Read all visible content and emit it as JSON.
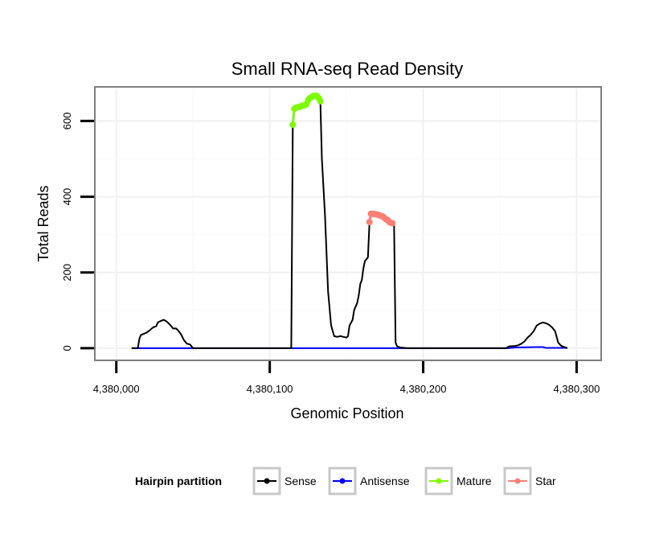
{
  "chart_data": {
    "type": "line",
    "title": "Small RNA-seq Read Density",
    "xlabel": "Genomic Position",
    "ylabel": "Total Reads",
    "xlim": [
      4379986,
      4380316
    ],
    "ylim": [
      -32,
      690
    ],
    "x_ticks": [
      4380000,
      4380100,
      4380200,
      4380300
    ],
    "x_tick_labels": [
      "4,380,000",
      "4,380,100",
      "4,380,200",
      "4,380,300"
    ],
    "y_ticks": [
      0,
      200,
      400,
      600
    ],
    "y_tick_labels": [
      "0",
      "200",
      "400",
      "600"
    ],
    "grid": true,
    "legend": {
      "title": "Hairpin partition",
      "placement": "bottom",
      "entries": [
        {
          "name": "Sense",
          "color": "#000000"
        },
        {
          "name": "Antisense",
          "color": "#0000ff"
        },
        {
          "name": "Mature",
          "color": "#7cfc00"
        },
        {
          "name": "Star",
          "color": "#fa8072"
        }
      ]
    },
    "series": [
      {
        "name": "Sense",
        "color": "#000000",
        "points": [
          [
            4380010,
            0
          ],
          [
            4380014,
            0
          ],
          [
            4380015,
            25
          ],
          [
            4380016,
            35
          ],
          [
            4380018,
            38
          ],
          [
            4380020,
            42
          ],
          [
            4380022,
            48
          ],
          [
            4380024,
            55
          ],
          [
            4380026,
            58
          ],
          [
            4380027,
            68
          ],
          [
            4380029,
            72
          ],
          [
            4380031,
            75
          ],
          [
            4380033,
            70
          ],
          [
            4380035,
            62
          ],
          [
            4380037,
            52
          ],
          [
            4380039,
            52
          ],
          [
            4380040,
            48
          ],
          [
            4380042,
            38
          ],
          [
            4380044,
            22
          ],
          [
            4380046,
            12
          ],
          [
            4380048,
            10
          ],
          [
            4380049,
            5
          ],
          [
            4380050,
            0
          ],
          [
            4380055,
            0
          ],
          [
            4380060,
            0
          ],
          [
            4380075,
            0
          ],
          [
            4380090,
            0
          ],
          [
            4380114,
            0
          ],
          [
            4380115,
            590
          ],
          [
            4380116,
            632
          ],
          [
            4380118,
            636
          ],
          [
            4380120,
            640
          ],
          [
            4380124,
            645
          ],
          [
            4380126,
            660
          ],
          [
            4380128,
            665
          ],
          [
            4380131,
            667
          ],
          [
            4380133,
            652
          ],
          [
            4380134,
            500
          ],
          [
            4380136,
            350
          ],
          [
            4380138,
            150
          ],
          [
            4380140,
            60
          ],
          [
            4380142,
            32
          ],
          [
            4380144,
            30
          ],
          [
            4380146,
            32
          ],
          [
            4380148,
            30
          ],
          [
            4380150,
            28
          ],
          [
            4380151,
            32
          ],
          [
            4380152,
            60
          ],
          [
            4380154,
            75
          ],
          [
            4380155,
            100
          ],
          [
            4380157,
            120
          ],
          [
            4380158,
            140
          ],
          [
            4380159,
            170
          ],
          [
            4380160,
            180
          ],
          [
            4380161,
            210
          ],
          [
            4380162,
            230
          ],
          [
            4380164,
            240
          ],
          [
            4380165,
            330
          ],
          [
            4380166,
            355
          ],
          [
            4380170,
            353
          ],
          [
            4380174,
            348
          ],
          [
            4380176,
            338
          ],
          [
            4380178,
            332
          ],
          [
            4380179,
            330
          ],
          [
            4380181,
            330
          ],
          [
            4380182,
            15
          ],
          [
            4380183,
            5
          ],
          [
            4380185,
            2
          ],
          [
            4380190,
            0
          ],
          [
            4380220,
            0
          ],
          [
            4380240,
            0
          ],
          [
            4380254,
            0
          ],
          [
            4380256,
            5
          ],
          [
            4380260,
            6
          ],
          [
            4380262,
            8
          ],
          [
            4380264,
            12
          ],
          [
            4380266,
            18
          ],
          [
            4380268,
            28
          ],
          [
            4380270,
            35
          ],
          [
            4380272,
            45
          ],
          [
            4380274,
            60
          ],
          [
            4380276,
            65
          ],
          [
            4380278,
            68
          ],
          [
            4380280,
            66
          ],
          [
            4380282,
            62
          ],
          [
            4380284,
            55
          ],
          [
            4380286,
            45
          ],
          [
            4380288,
            15
          ],
          [
            4380290,
            6
          ],
          [
            4380294,
            0
          ]
        ]
      },
      {
        "name": "Antisense",
        "color": "#0000ff",
        "points": [
          [
            4380010,
            0
          ],
          [
            4380255,
            0
          ],
          [
            4380260,
            2
          ],
          [
            4380274,
            3
          ],
          [
            4380278,
            3
          ],
          [
            4380280,
            1
          ],
          [
            4380284,
            1
          ],
          [
            4380294,
            1
          ]
        ]
      },
      {
        "name": "Mature",
        "color": "#7cfc00",
        "points": [
          [
            4380115,
            590
          ],
          [
            4380116,
            632
          ],
          [
            4380117,
            635
          ],
          [
            4380118,
            636
          ],
          [
            4380119,
            637
          ],
          [
            4380120,
            638
          ],
          [
            4380121,
            640
          ],
          [
            4380122,
            640
          ],
          [
            4380123,
            642
          ],
          [
            4380124,
            645
          ],
          [
            4380125,
            655
          ],
          [
            4380126,
            660
          ],
          [
            4380127,
            662
          ],
          [
            4380128,
            665
          ],
          [
            4380129,
            666
          ],
          [
            4380130,
            667
          ],
          [
            4380131,
            665
          ],
          [
            4380132,
            660
          ],
          [
            4380133,
            652
          ]
        ]
      },
      {
        "name": "Star",
        "color": "#fa8072",
        "points": [
          [
            4380165,
            333
          ],
          [
            4380166,
            355
          ],
          [
            4380167,
            355
          ],
          [
            4380168,
            354
          ],
          [
            4380169,
            354
          ],
          [
            4380170,
            353
          ],
          [
            4380171,
            352
          ],
          [
            4380172,
            350
          ],
          [
            4380173,
            349
          ],
          [
            4380174,
            347
          ],
          [
            4380175,
            343
          ],
          [
            4380176,
            340
          ],
          [
            4380177,
            338
          ],
          [
            4380178,
            333
          ],
          [
            4380179,
            331
          ],
          [
            4380180,
            330
          ]
        ]
      }
    ]
  }
}
